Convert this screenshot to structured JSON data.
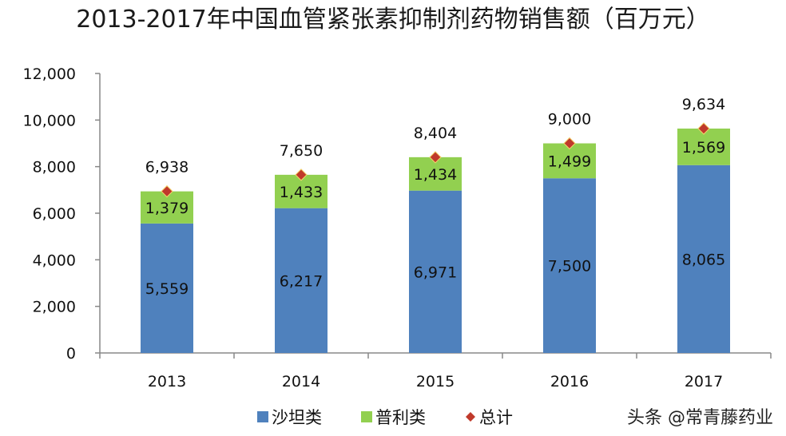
{
  "chart_data": {
    "type": "bar",
    "stacked": true,
    "title": "2013-2017年中国血管紧张素抑制剂药物销售额（百万元）",
    "categories": [
      "2013",
      "2014",
      "2015",
      "2016",
      "2017"
    ],
    "ylim": [
      0,
      12000
    ],
    "yticks": [
      0,
      2000,
      4000,
      6000,
      8000,
      10000,
      12000
    ],
    "ytick_labels": [
      "0",
      "2,000",
      "4,000",
      "6,000",
      "8,000",
      "10,000",
      "12,000"
    ],
    "series": [
      {
        "name": "沙坦类",
        "color": "#4F81BD",
        "values": [
          5559,
          6217,
          6971,
          7500,
          8065
        ],
        "labels": [
          "5,559",
          "6,217",
          "6,971",
          "7,500",
          "8,065"
        ]
      },
      {
        "name": "普利类",
        "color": "#92D050",
        "values": [
          1379,
          1433,
          1434,
          1499,
          1569
        ],
        "labels": [
          "1,379",
          "1,433",
          "1,434",
          "1,499",
          "1,569"
        ]
      }
    ],
    "total": {
      "name": "总计",
      "color": "#C0392B",
      "marker": "diamond",
      "values": [
        6938,
        7650,
        8404,
        9000,
        9634
      ],
      "labels": [
        "6,938",
        "7,650",
        "8,404",
        "9,000",
        "9,634"
      ]
    },
    "legend_position": "bottom",
    "grid": false
  },
  "watermark": "头条 @常青藤药业"
}
